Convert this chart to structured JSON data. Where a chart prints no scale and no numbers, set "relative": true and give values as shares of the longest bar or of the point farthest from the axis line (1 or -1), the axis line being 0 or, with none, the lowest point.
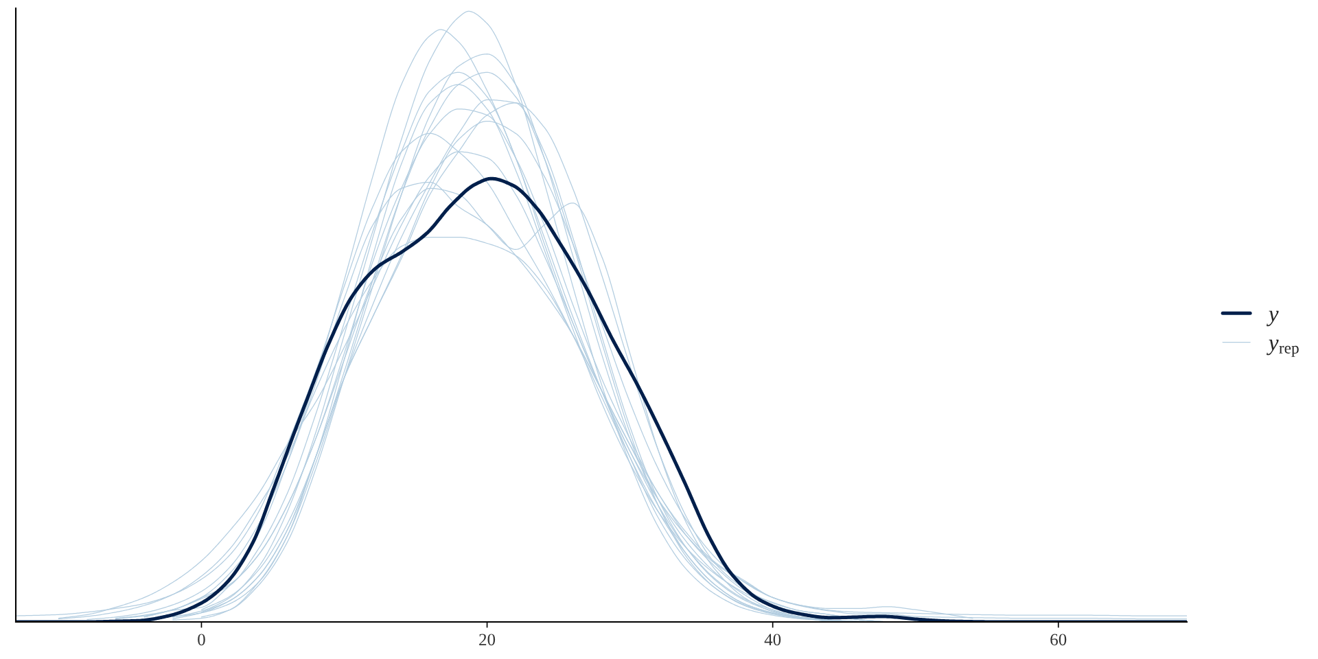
{
  "chart_data": {
    "type": "line",
    "relative": true,
    "xlim": [
      -13,
      69
    ],
    "xticks": [
      0,
      20,
      40,
      60
    ],
    "legend": "right",
    "tick_labels": "x",
    "x": [
      -13,
      -10,
      -8,
      -6,
      -4,
      -2,
      0,
      2,
      4,
      6,
      8,
      10,
      12,
      14,
      16,
      18,
      20,
      22,
      24,
      26,
      28,
      30,
      32,
      34,
      36,
      38,
      40,
      42,
      44,
      46,
      48,
      50,
      54,
      58,
      62,
      66,
      69
    ],
    "series": [
      {
        "name": "y",
        "color": "#011f4b",
        "x": [
          -13,
          -8,
          -6,
          -4.4,
          -2.3,
          0,
          1.8,
          3.6,
          5,
          6.5,
          7.4,
          8.9,
          10.6,
          12.3,
          14.1,
          15.8,
          17.5,
          19.2,
          20.3,
          21.8,
          23.5,
          25.1,
          27,
          28.8,
          30.6,
          32.3,
          33.8,
          35.6,
          37.1,
          39.1,
          41.5,
          44.1,
          47.7,
          50.3,
          52.7,
          56,
          69
        ],
        "values": [
          0,
          0,
          0.001,
          0.002,
          0.01,
          0.031,
          0.065,
          0.13,
          0.215,
          0.31,
          0.365,
          0.455,
          0.535,
          0.581,
          0.607,
          0.637,
          0.683,
          0.717,
          0.726,
          0.715,
          0.677,
          0.62,
          0.545,
          0.462,
          0.385,
          0.305,
          0.23,
          0.137,
          0.079,
          0.036,
          0.015,
          0.007,
          0.009,
          0.004,
          0.001,
          0,
          0
        ]
      },
      {
        "name": "y$_{rep}$",
        "color": "#b3cde0",
        "x": [
          -2,
          0,
          2,
          4,
          6,
          8,
          10,
          12,
          14,
          16,
          18,
          18.7,
          20,
          22,
          24,
          26,
          28,
          30,
          32,
          34,
          36,
          38,
          40,
          42,
          44,
          46
        ],
        "values": [
          0.008,
          0.018,
          0.04,
          0.09,
          0.18,
          0.31,
          0.47,
          0.63,
          0.79,
          0.92,
          0.99,
          1,
          0.98,
          0.88,
          0.72,
          0.55,
          0.39,
          0.26,
          0.155,
          0.085,
          0.045,
          0.022,
          0.011,
          0.005,
          0.002,
          0
        ]
      },
      {
        "color": "#b3cde0",
        "x": [
          -6,
          -4,
          -2,
          0,
          2,
          4,
          6,
          8,
          10,
          12,
          14,
          16,
          16.75,
          18,
          20,
          22,
          24,
          26,
          28,
          30,
          32,
          34,
          36,
          38,
          40,
          42,
          44,
          48
        ],
        "values": [
          0.005,
          0.01,
          0.02,
          0.04,
          0.08,
          0.145,
          0.26,
          0.4,
          0.56,
          0.73,
          0.88,
          0.96,
          0.97,
          0.95,
          0.87,
          0.76,
          0.63,
          0.5,
          0.38,
          0.27,
          0.17,
          0.1,
          0.055,
          0.028,
          0.014,
          0.006,
          0.003,
          0
        ]
      },
      {
        "color": "#b3cde0",
        "values": [
          null,
          null,
          null,
          null,
          0.008,
          0.019,
          0.024,
          0.06,
          0.11,
          0.19,
          0.3,
          0.43,
          0.56,
          0.66,
          0.71,
          0.7,
          0.65,
          0.61,
          0.65,
          0.686,
          0.6,
          0.44,
          0.28,
          0.16,
          0.085,
          0.04,
          0.017,
          0.007,
          0.002,
          0,
          null,
          null,
          null,
          null,
          null,
          null,
          null
        ]
      },
      {
        "color": "#b3cde0",
        "values": [
          null,
          0.005,
          0.009,
          0.016,
          0.027,
          0.045,
          0.075,
          0.12,
          0.19,
          0.27,
          0.38,
          0.48,
          0.56,
          0.615,
          0.63,
          0.63,
          0.62,
          0.6,
          0.55,
          0.47,
          0.38,
          0.29,
          0.21,
          0.14,
          0.09,
          0.052,
          0.032,
          0.018,
          0.012,
          0.004,
          0,
          null,
          null,
          null,
          null,
          null,
          null
        ]
      },
      {
        "color": "#b3cde0",
        "values": [
          0.01,
          0.012,
          0.016,
          0.022,
          0.03,
          0.045,
          0.07,
          0.11,
          0.18,
          0.29,
          0.41,
          0.55,
          0.68,
          0.77,
          0.8,
          0.77,
          0.72,
          0.64,
          0.56,
          0.47,
          0.37,
          0.27,
          0.18,
          0.11,
          0.06,
          0.03,
          0.015,
          0.007,
          0.003,
          0,
          null,
          null,
          null,
          null,
          null,
          null,
          null
        ]
      },
      {
        "color": "#b3cde0",
        "values": [
          null,
          null,
          null,
          null,
          null,
          null,
          0.02,
          0.042,
          0.085,
          0.16,
          0.27,
          0.41,
          0.56,
          0.7,
          0.81,
          0.88,
          0.9,
          0.86,
          0.76,
          0.62,
          0.46,
          0.31,
          0.19,
          0.105,
          0.055,
          0.027,
          0.013,
          0.006,
          0.003,
          0,
          null,
          null,
          null,
          null,
          null,
          null,
          null
        ]
      },
      {
        "color": "#b3cde0",
        "values": [
          null,
          null,
          null,
          null,
          null,
          0.005,
          0.015,
          0.035,
          0.075,
          0.15,
          0.27,
          0.4,
          0.5,
          0.595,
          0.7,
          0.77,
          0.83,
          0.85,
          0.81,
          0.71,
          0.57,
          0.42,
          0.28,
          0.17,
          0.095,
          0.055,
          0.031,
          0.018,
          0.012,
          0.004,
          0,
          null,
          null,
          null,
          null,
          null,
          null
        ]
      },
      {
        "color": "#b3cde0",
        "values": [
          null,
          null,
          null,
          null,
          null,
          null,
          0.016,
          0.035,
          0.075,
          0.15,
          0.27,
          0.43,
          0.6,
          0.75,
          0.85,
          0.88,
          0.84,
          0.74,
          0.61,
          0.48,
          0.36,
          0.26,
          0.18,
          0.12,
          0.078,
          0.048,
          0.027,
          0.015,
          0.008,
          0.004,
          0,
          null,
          null,
          null,
          null,
          null,
          null
        ]
      },
      {
        "color": "#b3cde0",
        "values": [
          null,
          null,
          null,
          null,
          null,
          0.008,
          0.015,
          0.03,
          0.065,
          0.14,
          0.27,
          0.4,
          0.5,
          0.6,
          0.71,
          0.79,
          0.82,
          0.8,
          0.73,
          0.62,
          0.49,
          0.36,
          0.25,
          0.165,
          0.105,
          0.065,
          0.04,
          0.027,
          0.022,
          0.022,
          0.025,
          0.02,
          0.006,
          null,
          null,
          null,
          null
        ]
      },
      {
        "color": "#b3cde0",
        "values": [
          null,
          0.006,
          0.012,
          0.024,
          0.04,
          0.065,
          0.1,
          0.15,
          0.21,
          0.29,
          0.36,
          0.45,
          0.55,
          0.65,
          0.73,
          0.77,
          0.76,
          0.7,
          0.6,
          0.49,
          0.38,
          0.28,
          0.19,
          0.12,
          0.07,
          0.038,
          0.02,
          0.008,
          0.003,
          0,
          null,
          null,
          null,
          null,
          null,
          null,
          null
        ]
      },
      {
        "color": "#b3cde0",
        "values": [
          null,
          null,
          null,
          null,
          null,
          0.003,
          0.006,
          0.02,
          0.065,
          0.14,
          0.26,
          0.4,
          0.52,
          0.63,
          0.72,
          0.8,
          0.855,
          0.85,
          0.77,
          0.63,
          0.47,
          0.32,
          0.2,
          0.12,
          0.068,
          0.036,
          0.018,
          0.008,
          0,
          null,
          null,
          null,
          null,
          null,
          null,
          null,
          null
        ]
      },
      {
        "color": "#b3cde0",
        "values": [
          null,
          null,
          null,
          null,
          0.008,
          0.02,
          0.038,
          0.06,
          0.12,
          0.21,
          0.34,
          0.49,
          0.64,
          0.77,
          0.87,
          0.9,
          0.86,
          0.76,
          0.62,
          0.49,
          0.38,
          0.28,
          0.2,
          0.14,
          0.095,
          0.066,
          0.04,
          0.026,
          0.018,
          0.013,
          0.013,
          0.009,
          0.007,
          0.006,
          0.006,
          0.005,
          0.005
        ]
      },
      {
        "color": "#b3cde0",
        "values": [
          null,
          null,
          0.004,
          0.008,
          0.015,
          0.028,
          0.05,
          0.09,
          0.16,
          0.26,
          0.39,
          0.53,
          0.65,
          0.71,
          0.72,
          0.68,
          0.65,
          0.6,
          0.54,
          0.47,
          0.38,
          0.29,
          0.2,
          0.13,
          0.08,
          0.045,
          0.02,
          0.008,
          0.003,
          0,
          null,
          null,
          null,
          null,
          null,
          null,
          null
        ]
      },
      {
        "color": "#b3cde0",
        "values": [
          null,
          null,
          null,
          null,
          null,
          null,
          0.008,
          0.02,
          0.06,
          0.13,
          0.25,
          0.4,
          0.55,
          0.7,
          0.83,
          0.91,
          0.93,
          0.88,
          0.76,
          0.6,
          0.44,
          0.3,
          0.19,
          0.11,
          0.06,
          0.03,
          0.015,
          0.007,
          0,
          null,
          null,
          null,
          null,
          null,
          null,
          null,
          null
        ]
      },
      {
        "color": "#b3cde0",
        "values": [
          null,
          null,
          null,
          0.006,
          0.011,
          0.02,
          0.04,
          0.062,
          0.11,
          0.19,
          0.3,
          0.44,
          0.59,
          0.71,
          0.8,
          0.84,
          0.83,
          0.76,
          0.65,
          0.52,
          0.4,
          0.3,
          0.21,
          0.145,
          0.097,
          0.068,
          0.04,
          0.027,
          0.019,
          0.016,
          0.015,
          0.014,
          0.012,
          0.011,
          0.011,
          0.01,
          0.01
        ]
      }
    ]
  }
}
